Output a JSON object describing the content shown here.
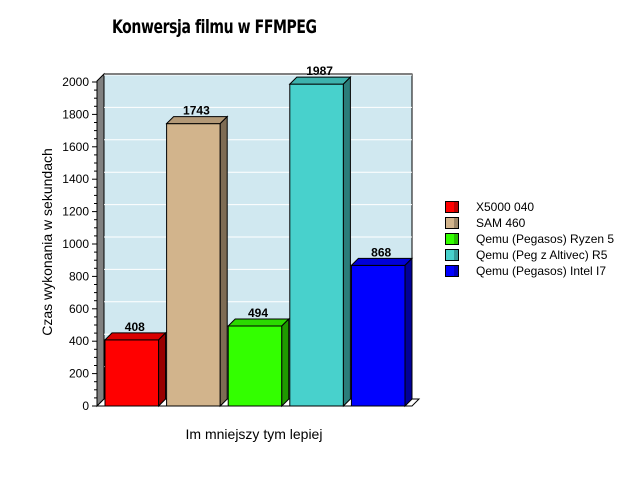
{
  "chart_data": {
    "type": "bar",
    "title": "Konwersja filmu w FFMPEG",
    "xlabel": "Im mniejszy tym lepiej",
    "ylabel": "Czas wykonania w sekundach",
    "ylim": [
      0,
      2000
    ],
    "yticks": [
      0,
      200,
      400,
      600,
      800,
      1000,
      1200,
      1400,
      1600,
      1800,
      2000
    ],
    "grid": true,
    "legend_position": "right",
    "series": [
      {
        "name": "X5000 040",
        "value": 408,
        "color": "#ff0000"
      },
      {
        "name": "SAM 460",
        "value": 1743,
        "color": "#d2b48c"
      },
      {
        "name": "Qemu (Pegasos) Ryzen 5",
        "value": 494,
        "color": "#33ff00"
      },
      {
        "name": "Qemu (Peg z Altivec) R5",
        "value": 1987,
        "color": "#48d1cc"
      },
      {
        "name": "Qemu (Pegasos) Intel I7",
        "value": 868,
        "color": "#0000ff"
      }
    ],
    "plot_background": "#d0e8f0"
  }
}
